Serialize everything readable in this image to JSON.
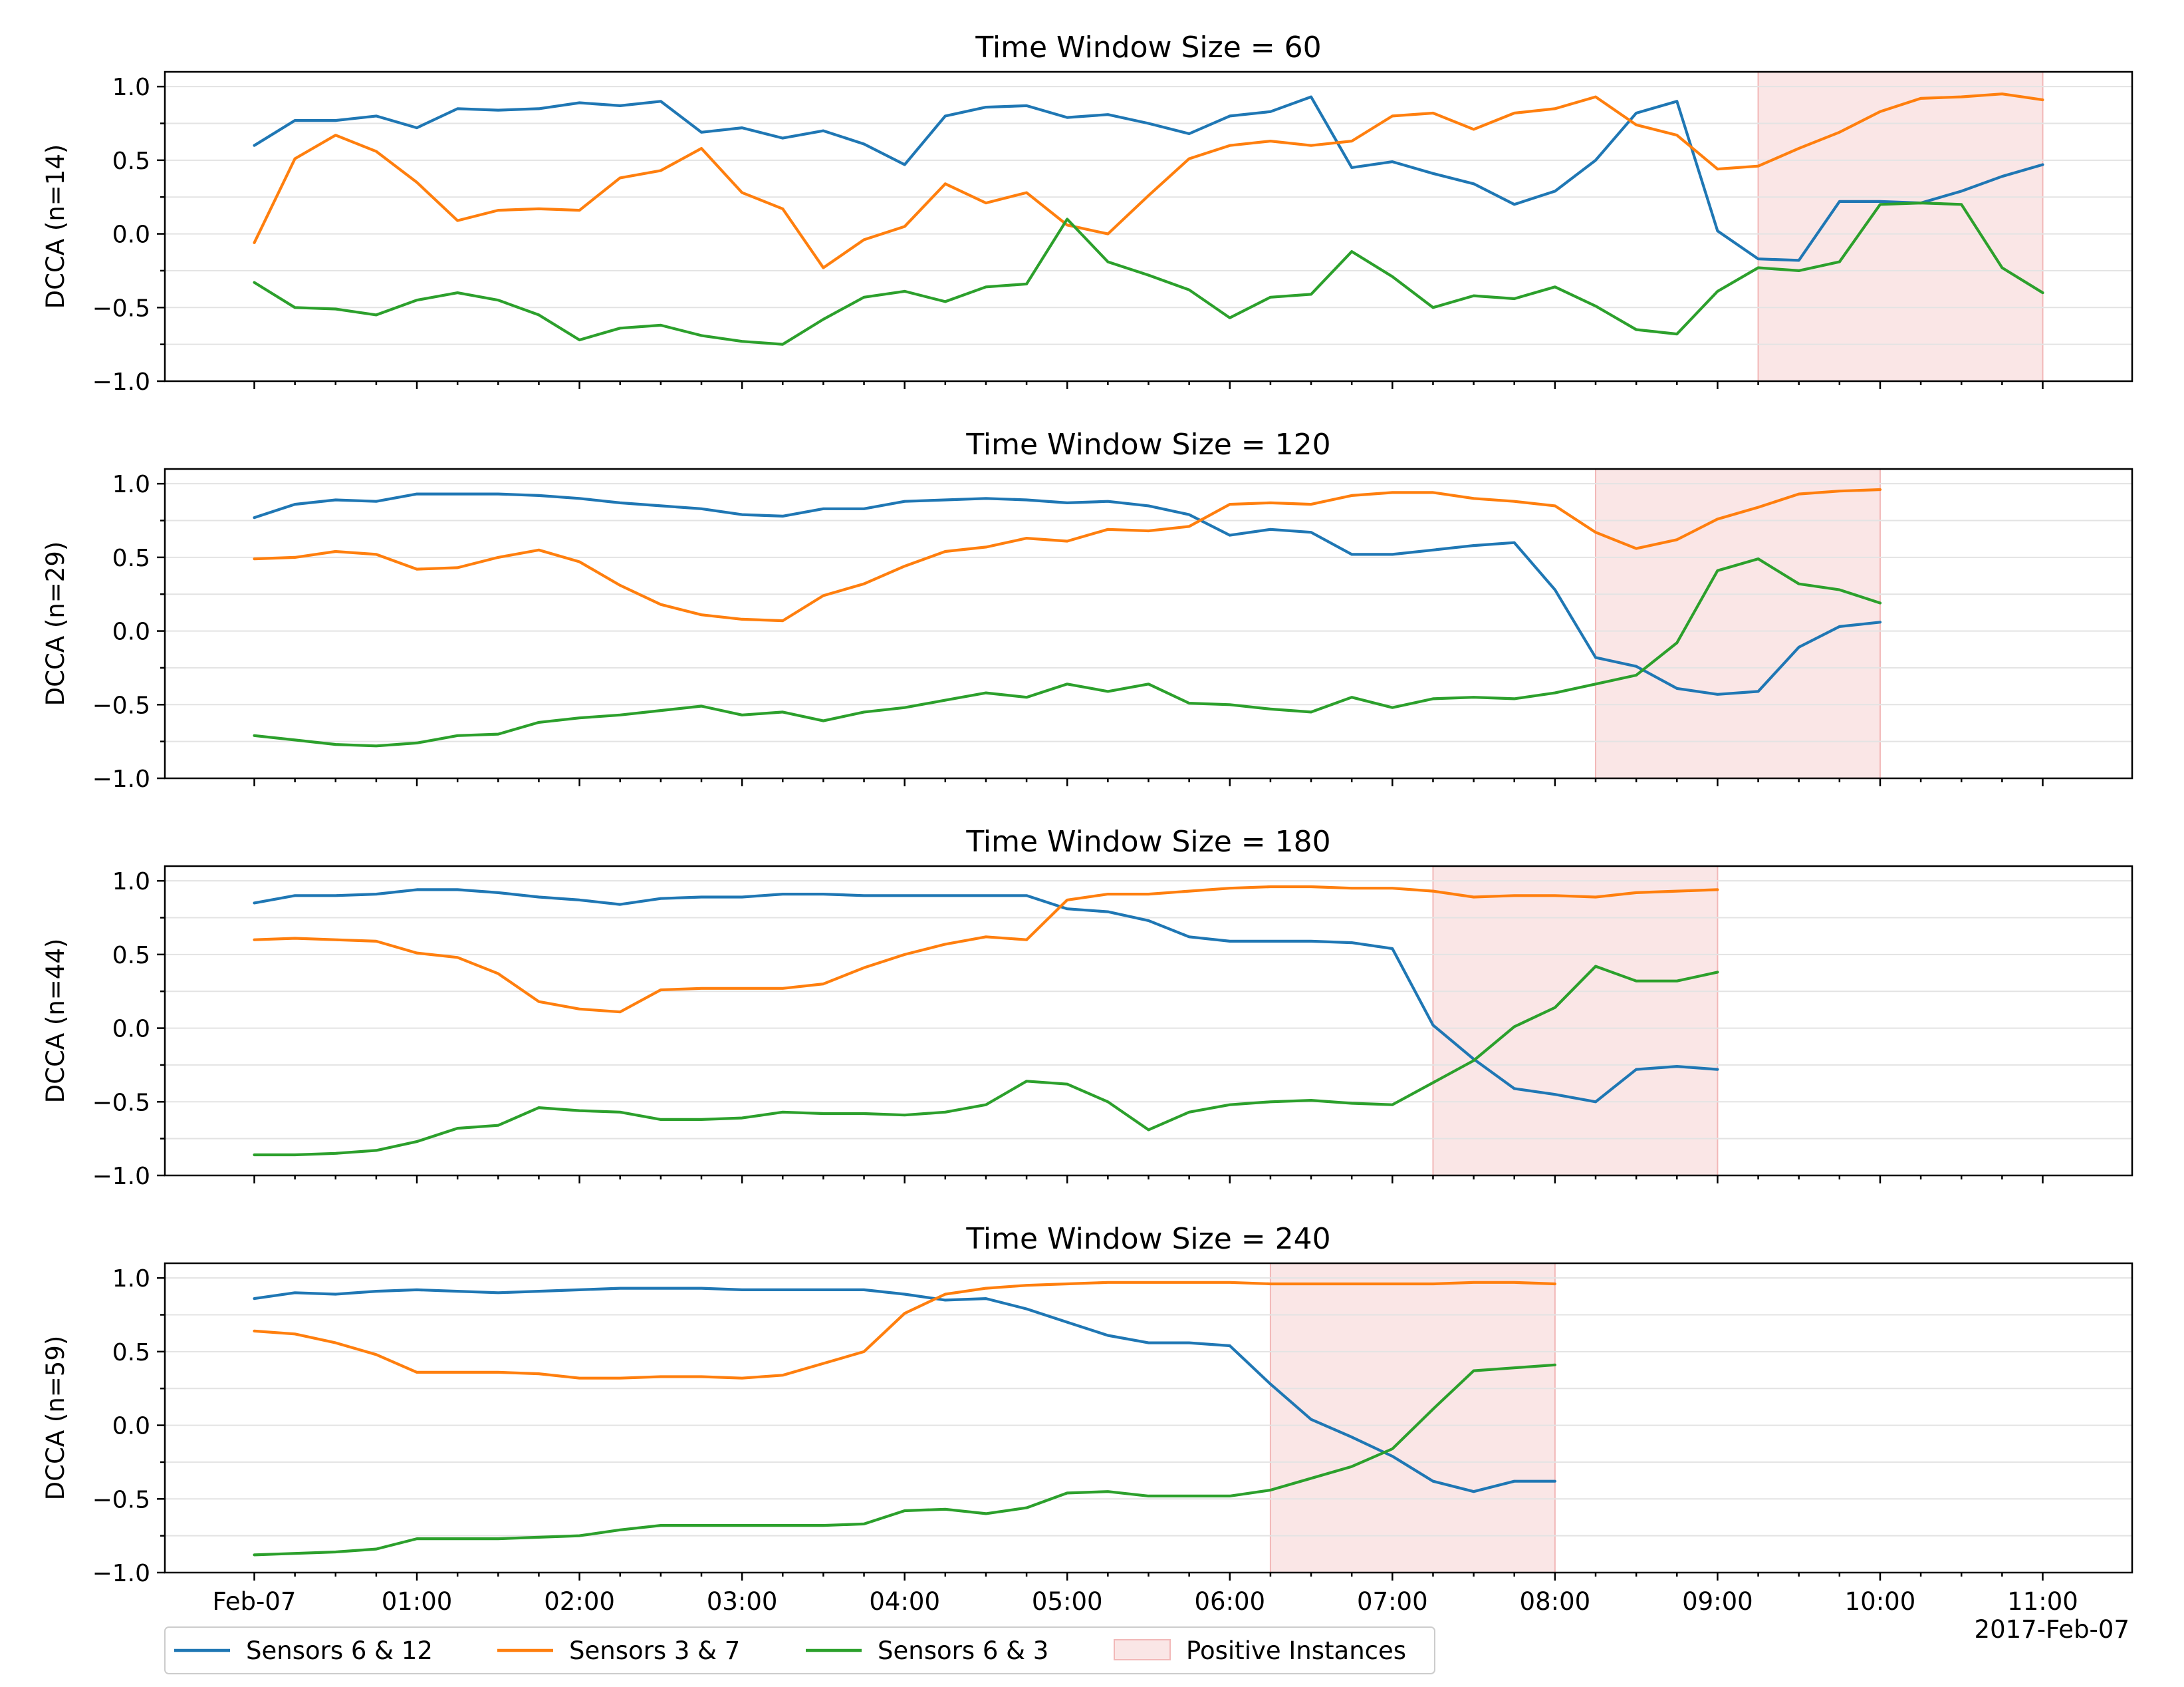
{
  "colors": {
    "sensors_6_12": "#1f77b4",
    "sensors_3_7": "#ff7f0e",
    "sensors_6_3": "#2ca02c",
    "positive": "#f2b8b8"
  },
  "x_ticks": [
    "Feb-07",
    "01:00",
    "02:00",
    "03:00",
    "04:00",
    "05:00",
    "06:00",
    "07:00",
    "08:00",
    "09:00",
    "10:00",
    "11:00"
  ],
  "x_offset_label": "2017-Feb-07",
  "y_ticks": [
    "1.0",
    "0.5",
    "0.0",
    "−0.5",
    "−1.0"
  ],
  "legend": {
    "items": [
      "Sensors 6 & 12",
      "Sensors 3 & 7",
      "Sensors 6 & 3",
      "Positive Instances"
    ]
  },
  "chart_data": [
    {
      "type": "line",
      "title": "Time Window Size = 60",
      "ylabel": "DCCA (n=14)",
      "xlabel": "",
      "x_unit": "hours since 2017-02-07 00:00",
      "xlim": [
        -0.55,
        11.55
      ],
      "ylim": [
        -1.0,
        1.1
      ],
      "positive_span": [
        9.25,
        11.0
      ],
      "x": [
        0,
        0.25,
        0.5,
        0.75,
        1,
        1.25,
        1.5,
        1.75,
        2,
        2.25,
        2.5,
        2.75,
        3,
        3.25,
        3.5,
        3.75,
        4,
        4.25,
        4.5,
        4.75,
        5,
        5.25,
        5.5,
        5.75,
        6,
        6.25,
        6.5,
        6.75,
        7,
        7.25,
        7.5,
        7.75,
        8,
        8.25,
        8.5,
        8.75,
        9,
        9.25,
        9.5,
        9.75,
        10,
        10.25,
        10.5,
        10.75,
        11
      ],
      "series": [
        {
          "name": "Sensors 6 & 12",
          "values": [
            0.6,
            0.77,
            0.77,
            0.8,
            0.72,
            0.85,
            0.84,
            0.85,
            0.89,
            0.87,
            0.9,
            0.69,
            0.72,
            0.65,
            0.7,
            0.61,
            0.47,
            0.8,
            0.86,
            0.87,
            0.79,
            0.81,
            0.75,
            0.68,
            0.8,
            0.83,
            0.93,
            0.45,
            0.49,
            0.41,
            0.34,
            0.2,
            0.29,
            0.5,
            0.82,
            0.9,
            0.02,
            -0.17,
            -0.18,
            0.22,
            0.22,
            0.21,
            0.29,
            0.39,
            0.47
          ]
        },
        {
          "name": "Sensors 3 & 7",
          "values": [
            -0.06,
            0.51,
            0.67,
            0.56,
            0.35,
            0.09,
            0.16,
            0.17,
            0.16,
            0.38,
            0.43,
            0.58,
            0.28,
            0.17,
            -0.23,
            -0.04,
            0.05,
            0.34,
            0.21,
            0.28,
            0.06,
            0.0,
            0.26,
            0.51,
            0.6,
            0.63,
            0.6,
            0.63,
            0.8,
            0.82,
            0.71,
            0.82,
            0.85,
            0.93,
            0.74,
            0.67,
            0.44,
            0.46,
            0.58,
            0.69,
            0.83,
            0.92,
            0.93,
            0.95,
            0.91
          ]
        },
        {
          "name": "Sensors 6 & 3",
          "values": [
            -0.33,
            -0.5,
            -0.51,
            -0.55,
            -0.45,
            -0.4,
            -0.45,
            -0.55,
            -0.72,
            -0.64,
            -0.62,
            -0.69,
            -0.73,
            -0.75,
            -0.58,
            -0.43,
            -0.39,
            -0.46,
            -0.36,
            -0.34,
            0.1,
            -0.19,
            -0.28,
            -0.38,
            -0.57,
            -0.43,
            -0.41,
            -0.12,
            -0.29,
            -0.5,
            -0.42,
            -0.44,
            -0.36,
            -0.49,
            -0.65,
            -0.68,
            -0.39,
            -0.23,
            -0.25,
            -0.19,
            0.2,
            0.21,
            0.2,
            -0.23,
            -0.4
          ]
        }
      ]
    },
    {
      "type": "line",
      "title": "Time Window Size = 120",
      "ylabel": "DCCA (n=29)",
      "xlabel": "",
      "x_unit": "hours since 2017-02-07 00:00",
      "xlim": [
        -0.55,
        11.55
      ],
      "ylim": [
        -1.0,
        1.1
      ],
      "positive_span": [
        8.25,
        10.0
      ],
      "x": [
        0,
        0.25,
        0.5,
        0.75,
        1,
        1.25,
        1.5,
        1.75,
        2,
        2.25,
        2.5,
        2.75,
        3,
        3.25,
        3.5,
        3.75,
        4,
        4.25,
        4.5,
        4.75,
        5,
        5.25,
        5.5,
        5.75,
        6,
        6.25,
        6.5,
        6.75,
        7,
        7.25,
        7.5,
        7.75,
        8,
        8.25,
        8.5,
        8.75,
        9,
        9.25,
        9.5,
        9.75,
        10
      ],
      "series": [
        {
          "name": "Sensors 6 & 12",
          "values": [
            0.77,
            0.86,
            0.89,
            0.88,
            0.93,
            0.93,
            0.93,
            0.92,
            0.9,
            0.87,
            0.85,
            0.83,
            0.79,
            0.78,
            0.83,
            0.83,
            0.88,
            0.89,
            0.9,
            0.89,
            0.87,
            0.88,
            0.85,
            0.79,
            0.65,
            0.69,
            0.67,
            0.52,
            0.52,
            0.55,
            0.58,
            0.6,
            0.28,
            -0.18,
            -0.24,
            -0.39,
            -0.43,
            -0.41,
            -0.11,
            0.03,
            0.06
          ]
        },
        {
          "name": "Sensors 3 & 7",
          "values": [
            0.49,
            0.5,
            0.54,
            0.52,
            0.42,
            0.43,
            0.5,
            0.55,
            0.47,
            0.31,
            0.18,
            0.11,
            0.08,
            0.07,
            0.24,
            0.32,
            0.44,
            0.54,
            0.57,
            0.63,
            0.61,
            0.69,
            0.68,
            0.71,
            0.86,
            0.87,
            0.86,
            0.92,
            0.94,
            0.94,
            0.9,
            0.88,
            0.85,
            0.67,
            0.56,
            0.62,
            0.76,
            0.84,
            0.93,
            0.95,
            0.96
          ]
        },
        {
          "name": "Sensors 6 & 3",
          "values": [
            -0.71,
            -0.74,
            -0.77,
            -0.78,
            -0.76,
            -0.71,
            -0.7,
            -0.62,
            -0.59,
            -0.57,
            -0.54,
            -0.51,
            -0.57,
            -0.55,
            -0.61,
            -0.55,
            -0.52,
            -0.47,
            -0.42,
            -0.45,
            -0.36,
            -0.41,
            -0.36,
            -0.49,
            -0.5,
            -0.53,
            -0.55,
            -0.45,
            -0.52,
            -0.46,
            -0.45,
            -0.46,
            -0.42,
            -0.36,
            -0.3,
            -0.08,
            0.41,
            0.49,
            0.32,
            0.28,
            0.19
          ]
        }
      ]
    },
    {
      "type": "line",
      "title": "Time Window Size = 180",
      "ylabel": "DCCA (n=44)",
      "xlabel": "",
      "x_unit": "hours since 2017-02-07 00:00",
      "xlim": [
        -0.55,
        11.55
      ],
      "ylim": [
        -1.0,
        1.1
      ],
      "positive_span": [
        7.25,
        9.0
      ],
      "x": [
        0,
        0.25,
        0.5,
        0.75,
        1,
        1.25,
        1.5,
        1.75,
        2,
        2.25,
        2.5,
        2.75,
        3,
        3.25,
        3.5,
        3.75,
        4,
        4.25,
        4.5,
        4.75,
        5,
        5.25,
        5.5,
        5.75,
        6,
        6.25,
        6.5,
        6.75,
        7,
        7.25,
        7.5,
        7.75,
        8,
        8.25,
        8.5,
        8.75,
        9
      ],
      "series": [
        {
          "name": "Sensors 6 & 12",
          "values": [
            0.85,
            0.9,
            0.9,
            0.91,
            0.94,
            0.94,
            0.92,
            0.89,
            0.87,
            0.84,
            0.88,
            0.89,
            0.89,
            0.91,
            0.91,
            0.9,
            0.9,
            0.9,
            0.9,
            0.9,
            0.81,
            0.79,
            0.73,
            0.62,
            0.59,
            0.59,
            0.59,
            0.58,
            0.54,
            0.02,
            -0.21,
            -0.41,
            -0.45,
            -0.5,
            -0.28,
            -0.26,
            -0.28
          ]
        },
        {
          "name": "Sensors 3 & 7",
          "values": [
            0.6,
            0.61,
            0.6,
            0.59,
            0.51,
            0.48,
            0.37,
            0.18,
            0.13,
            0.11,
            0.26,
            0.27,
            0.27,
            0.27,
            0.3,
            0.41,
            0.5,
            0.57,
            0.62,
            0.6,
            0.87,
            0.91,
            0.91,
            0.93,
            0.95,
            0.96,
            0.96,
            0.95,
            0.95,
            0.93,
            0.89,
            0.9,
            0.9,
            0.89,
            0.92,
            0.93,
            0.94
          ]
        },
        {
          "name": "Sensors 6 & 3",
          "values": [
            -0.86,
            -0.86,
            -0.85,
            -0.83,
            -0.77,
            -0.68,
            -0.66,
            -0.54,
            -0.56,
            -0.57,
            -0.62,
            -0.62,
            -0.61,
            -0.57,
            -0.58,
            -0.58,
            -0.59,
            -0.57,
            -0.52,
            -0.36,
            -0.38,
            -0.5,
            -0.69,
            -0.57,
            -0.52,
            -0.5,
            -0.49,
            -0.51,
            -0.52,
            -0.37,
            -0.22,
            0.01,
            0.14,
            0.42,
            0.32,
            0.32,
            0.38
          ]
        }
      ]
    },
    {
      "type": "line",
      "title": "Time Window Size = 240",
      "ylabel": "DCCA (n=59)",
      "xlabel": "",
      "x_unit": "hours since 2017-02-07 00:00",
      "xlim": [
        -0.55,
        11.55
      ],
      "ylim": [
        -1.0,
        1.1
      ],
      "positive_span": [
        6.25,
        8.0
      ],
      "x": [
        0,
        0.25,
        0.5,
        0.75,
        1,
        1.25,
        1.5,
        1.75,
        2,
        2.25,
        2.5,
        2.75,
        3,
        3.25,
        3.5,
        3.75,
        4,
        4.25,
        4.5,
        4.75,
        5,
        5.25,
        5.5,
        5.75,
        6,
        6.25,
        6.5,
        6.75,
        7,
        7.25,
        7.5,
        7.75,
        8
      ],
      "series": [
        {
          "name": "Sensors 6 & 12",
          "values": [
            0.86,
            0.9,
            0.89,
            0.91,
            0.92,
            0.91,
            0.9,
            0.91,
            0.92,
            0.93,
            0.93,
            0.93,
            0.92,
            0.92,
            0.92,
            0.92,
            0.89,
            0.85,
            0.86,
            0.79,
            0.7,
            0.61,
            0.56,
            0.56,
            0.54,
            0.28,
            0.04,
            -0.08,
            -0.21,
            -0.38,
            -0.45,
            -0.38,
            -0.38
          ]
        },
        {
          "name": "Sensors 3 & 7",
          "values": [
            0.64,
            0.62,
            0.56,
            0.48,
            0.36,
            0.36,
            0.36,
            0.35,
            0.32,
            0.32,
            0.33,
            0.33,
            0.32,
            0.34,
            0.42,
            0.5,
            0.76,
            0.89,
            0.93,
            0.95,
            0.96,
            0.97,
            0.97,
            0.97,
            0.97,
            0.96,
            0.96,
            0.96,
            0.96,
            0.96,
            0.97,
            0.97,
            0.96
          ]
        },
        {
          "name": "Sensors 6 & 3",
          "values": [
            -0.88,
            -0.87,
            -0.86,
            -0.84,
            -0.77,
            -0.77,
            -0.77,
            -0.76,
            -0.75,
            -0.71,
            -0.68,
            -0.68,
            -0.68,
            -0.68,
            -0.68,
            -0.67,
            -0.58,
            -0.57,
            -0.6,
            -0.56,
            -0.46,
            -0.45,
            -0.48,
            -0.48,
            -0.48,
            -0.44,
            -0.36,
            -0.28,
            -0.16,
            0.11,
            0.37,
            0.39,
            0.41
          ]
        }
      ]
    }
  ]
}
